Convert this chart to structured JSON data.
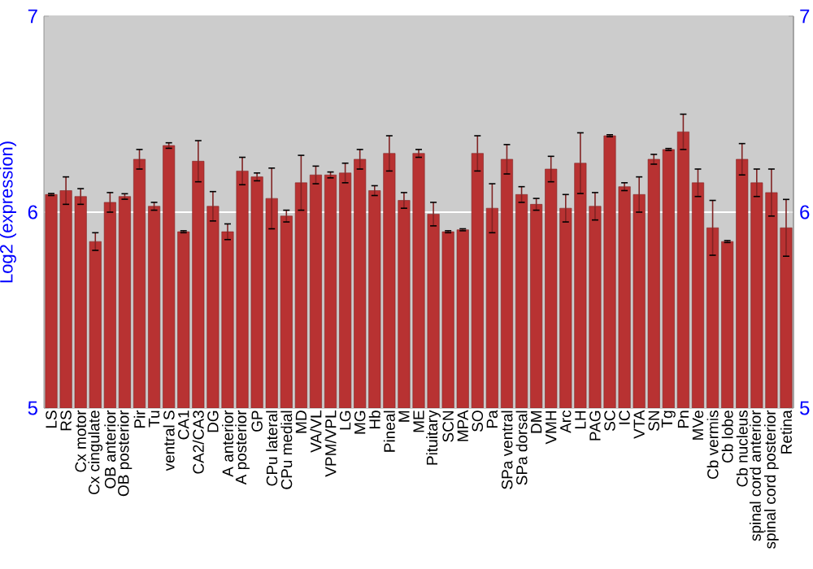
{
  "chart_data": {
    "type": "bar",
    "ylabel": "Log2 (expression)",
    "categories": [
      "LS",
      "RS",
      "Cx motor",
      "Cx cingulate",
      "OB anterior",
      "OB posterior",
      "Pir",
      "Tu",
      "ventral S",
      "CA1",
      "CA2/CA3",
      "DG",
      "A anterior",
      "A posterior",
      "GP",
      "CPu lateral",
      "CPu medial",
      "MD",
      "VA/VL",
      "VPM/VPL",
      "LG",
      "MG",
      "Hb",
      "Pineal",
      "M",
      "ME",
      "Pituitary",
      "SCN",
      "MPA",
      "SO",
      "Pa",
      "SPa ventral",
      "SPa dorsal",
      "DM",
      "VMH",
      "Arc",
      "LH",
      "PAG",
      "SC",
      "IC",
      "VTA",
      "SN",
      "Tg",
      "Pn",
      "MVe",
      "Cb vermis",
      "Cb lobe",
      "Cb nucleus",
      "spinal cord anterior",
      "spinal cord posterior",
      "Retina"
    ],
    "values": [
      6.09,
      6.11,
      6.08,
      5.85,
      6.05,
      6.08,
      6.27,
      6.03,
      6.34,
      5.9,
      6.26,
      6.03,
      5.9,
      6.21,
      6.18,
      6.07,
      5.98,
      6.15,
      6.19,
      6.19,
      6.2,
      6.27,
      6.11,
      6.3,
      6.06,
      6.3,
      5.99,
      5.9,
      5.91,
      6.3,
      6.02,
      6.27,
      6.09,
      6.04,
      6.22,
      6.02,
      6.25,
      6.03,
      6.39,
      6.13,
      6.09,
      6.27,
      6.32,
      6.41,
      6.15,
      5.92,
      5.85,
      6.27,
      6.15,
      6.1,
      5.92
    ],
    "errors": [
      0.005,
      0.07,
      0.04,
      0.045,
      0.05,
      0.014,
      0.05,
      0.02,
      0.014,
      0.005,
      0.105,
      0.075,
      0.04,
      0.07,
      0.02,
      0.155,
      0.03,
      0.14,
      0.045,
      0.015,
      0.05,
      0.05,
      0.025,
      0.09,
      0.04,
      0.02,
      0.06,
      0.005,
      0.005,
      0.09,
      0.125,
      0.075,
      0.04,
      0.03,
      0.065,
      0.07,
      0.155,
      0.07,
      0.005,
      0.02,
      0.09,
      0.025,
      0.005,
      0.09,
      0.07,
      0.14,
      0.005,
      0.08,
      0.07,
      0.12,
      0.145
    ],
    "color": "#b83232",
    "ylim": [
      5,
      7
    ],
    "yticks": [
      5,
      6,
      7
    ],
    "y2lim": [
      5,
      7
    ],
    "y2ticks": [
      5,
      6,
      7
    ],
    "grid": "y"
  }
}
